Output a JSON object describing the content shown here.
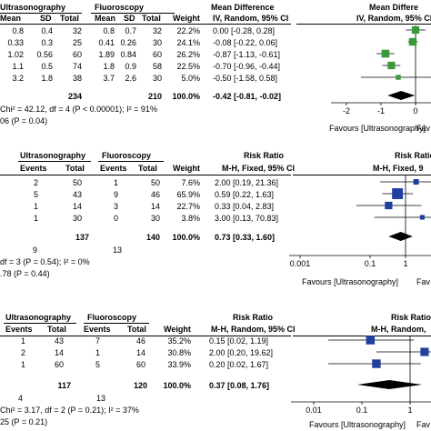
{
  "panels": [
    {
      "groupA": "Ultrasonography",
      "groupB": "Fluoroscopy",
      "effect_header": "Mean Difference",
      "effect_header_right": "Mean Differe",
      "method": "IV, Random, 95% CI",
      "cols": [
        "Mean",
        "SD",
        "Total",
        "Mean",
        "SD",
        "Total",
        "Weight"
      ],
      "rows": [
        {
          "a": [
            "0.8",
            "0.4",
            "32"
          ],
          "b": [
            "0.8",
            "0.7",
            "32"
          ],
          "w": "22.2%",
          "ci": "0.00 [-0.28, 0.28]"
        },
        {
          "a": [
            "0.33",
            "0.3",
            "25"
          ],
          "b": [
            "0.41",
            "0.26",
            "30"
          ],
          "w": "24.1%",
          "ci": "-0.08 [-0.22, 0.06]"
        },
        {
          "a": [
            "1.02",
            "0.56",
            "60"
          ],
          "b": [
            "1.89",
            "0.84",
            "60"
          ],
          "w": "26.2%",
          "ci": "-0.87 [-1.13, -0.61]"
        },
        {
          "a": [
            "1.1",
            "0.5",
            "74"
          ],
          "b": [
            "1.8",
            "0.9",
            "58"
          ],
          "w": "22.5%",
          "ci": "-0.70 [-0.96, -0.44]"
        },
        {
          "a": [
            "3.2",
            "1.8",
            "38"
          ],
          "b": [
            "3.7",
            "2.6",
            "30"
          ],
          "w": "5.0%",
          "ci": "-0.50 [-1.58, 0.58]"
        }
      ],
      "total": {
        "a": "234",
        "b": "210",
        "w": "100.0%",
        "ci": "-0.42 [-0.81, -0.02]"
      },
      "het": "Chi² = 42.12, df = 4 (P < 0.00001); I² = 91%",
      "overall": "06 (P = 0.04)",
      "ticks": [
        "-2",
        "-1",
        "0"
      ],
      "favours": "Favours [Ultrasonography]",
      "favours_right": "Fav"
    },
    {
      "groupA": "Ultrasonography",
      "groupB": "Fluoroscopy",
      "effect_header": "Risk Ratio",
      "effect_header_right": "Risk Ratio",
      "method": "M-H, Fixed, 95% CI",
      "method_right": "M-H, Fixed, 9",
      "cols": [
        "Events",
        "Total",
        "Events",
        "Total",
        "Weight"
      ],
      "rows": [
        {
          "a": [
            "2",
            "50"
          ],
          "b": [
            "1",
            "50"
          ],
          "w": "7.6%",
          "ci": "2.00 [0.19, 21.36]"
        },
        {
          "a": [
            "5",
            "43"
          ],
          "b": [
            "9",
            "46"
          ],
          "w": "65.9%",
          "ci": "0.59 [0.22, 1.63]"
        },
        {
          "a": [
            "1",
            "14"
          ],
          "b": [
            "3",
            "14"
          ],
          "w": "22.7%",
          "ci": "0.33 [0.04, 2.83]"
        },
        {
          "a": [
            "1",
            "30"
          ],
          "b": [
            "0",
            "30"
          ],
          "w": "3.8%",
          "ci": "3.00 [0.13, 70.83]"
        }
      ],
      "total": {
        "a": "137",
        "b": "140",
        "w": "100.0%",
        "ci": "0.73 [0.33, 1.60]"
      },
      "events_total": {
        "a": "9",
        "b": "13"
      },
      "het": "df = 3 (P = 0.54); I² = 0%",
      "overall": ".78 (P = 0.44)",
      "ticks": [
        "0.001",
        "0.1",
        "1"
      ],
      "favours": "Favours [Ultrasonography]",
      "favours_right": "Fav"
    },
    {
      "groupA": "Ultrasonography",
      "groupB": "Fluoroscopy",
      "effect_header": "Risk Ratio",
      "effect_header_right": "Risk Ratio",
      "method": "M-H, Random, 95% CI",
      "method_right": "M-H, Random,",
      "cols": [
        "Events",
        "Total",
        "Events",
        "Total",
        "Weight"
      ],
      "rows": [
        {
          "a": [
            "1",
            "43"
          ],
          "b": [
            "7",
            "46"
          ],
          "w": "35.2%",
          "ci": "0.15 [0.02, 1.19]"
        },
        {
          "a": [
            "2",
            "14"
          ],
          "b": [
            "1",
            "14"
          ],
          "w": "30.8%",
          "ci": "2.00 [0.20, 19.62]"
        },
        {
          "a": [
            "1",
            "60"
          ],
          "b": [
            "5",
            "60"
          ],
          "w": "33.9%",
          "ci": "0.20 [0.02, 1.67]"
        }
      ],
      "total": {
        "a": "117",
        "b": "120",
        "w": "100.0%",
        "ci": "0.37 [0.08, 1.76]"
      },
      "events_total": {
        "a": "4",
        "b": "13"
      },
      "het": "Chi² = 3.17, df = 2 (P = 0.21); I² = 37%",
      "overall": "25 (P = 0.21)",
      "ticks": [
        "0.01",
        "0.1",
        "1"
      ],
      "favours": "Favours [Ultrasonography]",
      "favours_right": "Fav"
    }
  ],
  "chart_data": [
    {
      "type": "scatter",
      "measure": "Mean Difference",
      "scale": "linear",
      "xlim": [
        -2,
        0.5
      ],
      "colors": {
        "study": "#3a9a3a",
        "total": "#000000"
      },
      "studies": [
        {
          "est": 0.0,
          "lo": -0.28,
          "hi": 0.28,
          "weight": 22.2
        },
        {
          "est": -0.08,
          "lo": -0.22,
          "hi": 0.06,
          "weight": 24.1
        },
        {
          "est": -0.87,
          "lo": -1.13,
          "hi": -0.61,
          "weight": 26.2
        },
        {
          "est": -0.7,
          "lo": -0.96,
          "hi": -0.44,
          "weight": 22.5
        },
        {
          "est": -0.5,
          "lo": -1.58,
          "hi": 0.58,
          "weight": 5.0
        }
      ],
      "total": {
        "est": -0.42,
        "lo": -0.81,
        "hi": -0.02
      }
    },
    {
      "type": "scatter",
      "measure": "Risk Ratio",
      "scale": "log",
      "xlim": [
        0.001,
        2
      ],
      "colors": {
        "study": "#1f3f9f",
        "total": "#000000"
      },
      "studies": [
        {
          "est": 2.0,
          "lo": 0.19,
          "hi": 21.36,
          "weight": 7.6
        },
        {
          "est": 0.59,
          "lo": 0.22,
          "hi": 1.63,
          "weight": 65.9
        },
        {
          "est": 0.33,
          "lo": 0.04,
          "hi": 2.83,
          "weight": 22.7
        },
        {
          "est": 3.0,
          "lo": 0.13,
          "hi": 70.83,
          "weight": 3.8
        }
      ],
      "total": {
        "est": 0.73,
        "lo": 0.33,
        "hi": 1.6
      }
    },
    {
      "type": "scatter",
      "measure": "Risk Ratio",
      "scale": "log",
      "xlim": [
        0.01,
        2
      ],
      "colors": {
        "study": "#1f3f9f",
        "total": "#000000"
      },
      "studies": [
        {
          "est": 0.15,
          "lo": 0.02,
          "hi": 1.19,
          "weight": 35.2
        },
        {
          "est": 2.0,
          "lo": 0.2,
          "hi": 19.62,
          "weight": 30.8
        },
        {
          "est": 0.2,
          "lo": 0.02,
          "hi": 1.67,
          "weight": 33.9
        }
      ],
      "total": {
        "est": 0.37,
        "lo": 0.08,
        "hi": 1.76
      }
    }
  ]
}
